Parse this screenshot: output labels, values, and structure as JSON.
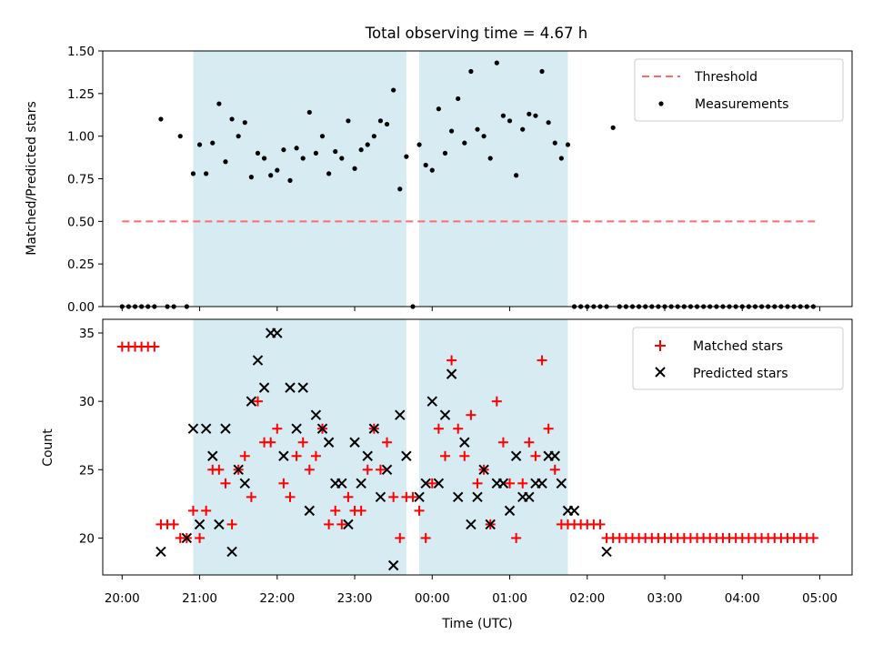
{
  "chart_data": {
    "type": "scatter",
    "title": "Total observing time = 4.67 h",
    "xlabel": "Time (UTC)",
    "xlim": [
      "19:45",
      "05:25"
    ],
    "x_ticks": [
      "20:00",
      "21:00",
      "22:00",
      "23:00",
      "00:00",
      "01:00",
      "02:00",
      "03:00",
      "04:00",
      "05:00"
    ],
    "observing_windows": [
      [
        "20:55",
        "23:40"
      ],
      [
        "23:50",
        "01:45"
      ]
    ],
    "observing_window_color": "#add8e6",
    "panels": [
      {
        "ylabel": "Matched/Predicted stars",
        "ylim": [
          0,
          1.5
        ],
        "y_ticks": [
          "0.00",
          "0.25",
          "0.50",
          "0.75",
          "1.00",
          "1.25",
          "1.50"
        ],
        "legend_position": "top-right",
        "series": [
          {
            "name": "Threshold",
            "kind": "line",
            "color": "#ff6b6b",
            "x": [
              "20:00",
              "04:58"
            ],
            "y": [
              0.5,
              0.5
            ]
          },
          {
            "name": "Measurements",
            "kind": "dot",
            "color": "#000000",
            "x": [
              "20:00",
              "20:05",
              "20:10",
              "20:15",
              "20:20",
              "20:25",
              "20:30",
              "20:35",
              "20:40",
              "20:45",
              "20:50",
              "20:55",
              "21:00",
              "21:05",
              "21:10",
              "21:15",
              "21:20",
              "21:25",
              "21:30",
              "21:35",
              "21:40",
              "21:45",
              "21:50",
              "21:55",
              "22:00",
              "22:05",
              "22:10",
              "22:15",
              "22:20",
              "22:25",
              "22:30",
              "22:35",
              "22:40",
              "22:45",
              "22:50",
              "22:55",
              "23:00",
              "23:05",
              "23:10",
              "23:15",
              "23:20",
              "23:25",
              "23:30",
              "23:35",
              "23:40",
              "23:45",
              "23:50",
              "23:55",
              "00:00",
              "00:05",
              "00:10",
              "00:15",
              "00:20",
              "00:25",
              "00:30",
              "00:35",
              "00:40",
              "00:45",
              "00:50",
              "00:55",
              "01:00",
              "01:05",
              "01:10",
              "01:15",
              "01:20",
              "01:25",
              "01:30",
              "01:35",
              "01:40",
              "01:45",
              "01:50",
              "01:55",
              "02:00",
              "02:05",
              "02:10",
              "02:15",
              "02:20",
              "02:25",
              "02:30",
              "02:35",
              "02:40",
              "02:45",
              "02:50",
              "02:55",
              "03:00",
              "03:05",
              "03:10",
              "03:15",
              "03:20",
              "03:25",
              "03:30",
              "03:35",
              "03:40",
              "03:45",
              "03:50",
              "03:55",
              "04:00",
              "04:05",
              "04:10",
              "04:15",
              "04:20",
              "04:25",
              "04:30",
              "04:35",
              "04:40",
              "04:45",
              "04:50",
              "04:55"
            ],
            "y": [
              0,
              0,
              0,
              0,
              0,
              0,
              1.1,
              0,
              0,
              1.0,
              0,
              0.78,
              0.95,
              0.78,
              0.96,
              1.19,
              0.85,
              1.1,
              1.0,
              1.08,
              0.76,
              0.9,
              0.87,
              0.77,
              0.8,
              0.92,
              0.74,
              0.93,
              0.87,
              1.14,
              0.9,
              1.0,
              0.78,
              0.91,
              0.87,
              1.09,
              0.81,
              0.92,
              0.95,
              1.0,
              1.09,
              1.07,
              1.27,
              0.69,
              0.88,
              0.0,
              0.95,
              0.83,
              0.8,
              1.16,
              0.9,
              1.03,
              1.22,
              0.96,
              1.38,
              1.04,
              1.0,
              0.87,
              1.43,
              1.12,
              1.09,
              0.77,
              1.04,
              1.13,
              1.12,
              1.38,
              1.08,
              0.96,
              0.87,
              0.95,
              0,
              0,
              0,
              0,
              0,
              0,
              1.05,
              0,
              0,
              0,
              0,
              0,
              0,
              0,
              0,
              0,
              0,
              0,
              0,
              0,
              0,
              0,
              0,
              0,
              0,
              0,
              0,
              0,
              0,
              0,
              0,
              0,
              0,
              0,
              0,
              0,
              0,
              0
            ]
          }
        ]
      },
      {
        "ylabel": "Count",
        "ylim": [
          17.3,
          36.0
        ],
        "y_ticks": [
          "20",
          "25",
          "30",
          "35"
        ],
        "legend_position": "top-right",
        "series": [
          {
            "name": "Matched stars",
            "kind": "plus",
            "color": "#ff0000",
            "x": [
              "20:00",
              "20:05",
              "20:10",
              "20:15",
              "20:20",
              "20:25",
              "20:30",
              "20:35",
              "20:40",
              "20:45",
              "20:50",
              "20:55",
              "21:00",
              "21:05",
              "21:10",
              "21:15",
              "21:20",
              "21:25",
              "21:30",
              "21:35",
              "21:40",
              "21:45",
              "21:50",
              "21:55",
              "22:00",
              "22:05",
              "22:10",
              "22:15",
              "22:20",
              "22:25",
              "22:30",
              "22:35",
              "22:40",
              "22:45",
              "22:50",
              "22:55",
              "23:00",
              "23:05",
              "23:10",
              "23:15",
              "23:20",
              "23:25",
              "23:30",
              "23:35",
              "23:40",
              "23:45",
              "23:50",
              "23:55",
              "00:00",
              "00:05",
              "00:10",
              "00:15",
              "00:20",
              "00:25",
              "00:30",
              "00:35",
              "00:40",
              "00:45",
              "00:50",
              "00:55",
              "01:00",
              "01:05",
              "01:10",
              "01:15",
              "01:20",
              "01:25",
              "01:30",
              "01:35",
              "01:40",
              "01:45",
              "01:50",
              "01:55",
              "02:00",
              "02:05",
              "02:10",
              "02:15",
              "02:20",
              "02:25",
              "02:30",
              "02:35",
              "02:40",
              "02:45",
              "02:50",
              "02:55",
              "03:00",
              "03:05",
              "03:10",
              "03:15",
              "03:20",
              "03:25",
              "03:30",
              "03:35",
              "03:40",
              "03:45",
              "03:50",
              "03:55",
              "04:00",
              "04:05",
              "04:10",
              "04:15",
              "04:20",
              "04:25",
              "04:30",
              "04:35",
              "04:40",
              "04:45",
              "04:50",
              "04:55"
            ],
            "y": [
              34,
              34,
              34,
              34,
              34,
              34,
              21,
              21,
              21,
              20,
              20,
              22,
              20,
              22,
              25,
              25,
              24,
              21,
              25,
              26,
              23,
              30,
              27,
              27,
              28,
              24,
              23,
              26,
              27,
              25,
              26,
              28,
              21,
              22,
              21,
              23,
              22,
              22,
              25,
              28,
              25,
              27,
              23,
              20,
              23,
              23,
              22,
              20,
              24,
              28,
              26,
              33,
              28,
              26,
              29,
              24,
              25,
              21,
              30,
              27,
              24,
              20,
              24,
              27,
              26,
              33,
              28,
              25,
              21,
              21,
              21,
              21,
              21,
              21,
              21,
              20,
              20,
              20,
              20,
              20,
              20,
              20,
              20,
              20,
              20,
              20,
              20,
              20,
              20,
              20,
              20,
              20,
              20,
              20,
              20,
              20,
              20,
              20,
              20,
              20,
              20,
              20,
              20,
              20,
              20,
              20,
              20,
              20
            ]
          },
          {
            "name": "Predicted stars",
            "kind": "cross",
            "color": "#000000",
            "x": [
              "20:30",
              "20:50",
              "20:55",
              "21:00",
              "21:05",
              "21:10",
              "21:15",
              "21:20",
              "21:25",
              "21:30",
              "21:35",
              "21:40",
              "21:45",
              "21:50",
              "21:55",
              "22:00",
              "22:05",
              "22:10",
              "22:15",
              "22:20",
              "22:25",
              "22:30",
              "22:35",
              "22:40",
              "22:45",
              "22:50",
              "22:55",
              "23:00",
              "23:05",
              "23:10",
              "23:15",
              "23:20",
              "23:25",
              "23:30",
              "23:35",
              "23:40",
              "23:50",
              "23:55",
              "00:00",
              "00:05",
              "00:10",
              "00:15",
              "00:20",
              "00:25",
              "00:30",
              "00:35",
              "00:40",
              "00:45",
              "00:50",
              "00:55",
              "01:00",
              "01:05",
              "01:10",
              "01:15",
              "01:20",
              "01:25",
              "01:30",
              "01:35",
              "01:40",
              "01:45",
              "01:50",
              "02:15"
            ],
            "y": [
              19,
              20,
              28,
              21,
              28,
              26,
              21,
              28,
              19,
              25,
              24,
              30,
              33,
              31,
              35,
              35,
              26,
              31,
              28,
              31,
              22,
              29,
              28,
              27,
              24,
              24,
              21,
              27,
              24,
              26,
              28,
              23,
              25,
              18,
              29,
              26,
              23,
              24,
              30,
              24,
              29,
              32,
              23,
              27,
              21,
              23,
              25,
              21,
              24,
              24,
              22,
              26,
              23,
              23,
              24,
              24,
              26,
              26,
              24,
              22,
              22,
              19
            ]
          }
        ]
      }
    ]
  }
}
